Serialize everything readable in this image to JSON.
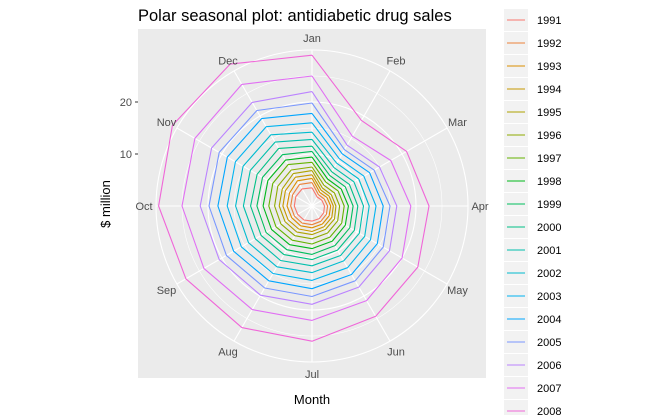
{
  "chart_data": {
    "type": "polar-line",
    "title": "Polar seasonal plot: antidiabetic drug sales",
    "xlabel": "Month",
    "ylabel": "$ million",
    "months": [
      "Jan",
      "Feb",
      "Mar",
      "Apr",
      "May",
      "Jun",
      "Jul",
      "Aug",
      "Sep",
      "Oct",
      "Nov",
      "Dec"
    ],
    "r_ticks": [
      10,
      20
    ],
    "r_max": 30,
    "grid": true,
    "legend_position": "right",
    "series": [
      {
        "name": "1991",
        "color": "#F8766D",
        "values": [
          3.5,
          2.0,
          2.2,
          2.4,
          2.6,
          2.8,
          2.9,
          3.1,
          3.2,
          3.4,
          3.6,
          3.8
        ]
      },
      {
        "name": "1992",
        "color": "#EC8239",
        "values": [
          4.5,
          2.5,
          2.7,
          3.0,
          3.2,
          3.4,
          3.6,
          3.8,
          3.9,
          4.1,
          4.3,
          4.8
        ]
      },
      {
        "name": "1993",
        "color": "#DB8E00",
        "values": [
          5.3,
          3.0,
          3.3,
          3.6,
          3.8,
          4.0,
          4.2,
          4.4,
          4.5,
          4.8,
          5.0,
          5.6
        ]
      },
      {
        "name": "1994",
        "color": "#C79800",
        "values": [
          6.0,
          3.5,
          3.8,
          4.1,
          4.4,
          4.6,
          4.9,
          5.1,
          5.3,
          5.6,
          5.9,
          6.4
        ]
      },
      {
        "name": "1995",
        "color": "#AEA200",
        "values": [
          6.8,
          4.0,
          4.3,
          4.6,
          5.0,
          5.2,
          5.5,
          5.8,
          6.0,
          6.3,
          6.6,
          7.2
        ]
      },
      {
        "name": "1996",
        "color": "#8EAB00",
        "values": [
          7.5,
          4.6,
          5.0,
          5.3,
          5.7,
          6.0,
          6.3,
          6.6,
          6.9,
          7.2,
          7.6,
          8.0
        ]
      },
      {
        "name": "1997",
        "color": "#64B200",
        "values": [
          8.4,
          5.3,
          5.8,
          6.2,
          6.6,
          6.9,
          7.3,
          7.6,
          8.0,
          8.3,
          8.7,
          9.2
        ]
      },
      {
        "name": "1998",
        "color": "#00B81B",
        "values": [
          9.4,
          6.0,
          6.5,
          7.0,
          7.4,
          7.8,
          8.2,
          8.6,
          9.0,
          9.4,
          9.8,
          10.2
        ]
      },
      {
        "name": "1999",
        "color": "#00BD5C",
        "values": [
          10.5,
          6.8,
          7.4,
          7.9,
          8.4,
          8.8,
          9.3,
          9.7,
          10.2,
          10.6,
          11.0,
          11.4
        ]
      },
      {
        "name": "2000",
        "color": "#00C086",
        "values": [
          11.5,
          7.6,
          8.3,
          8.8,
          9.4,
          9.8,
          10.3,
          10.8,
          11.3,
          11.8,
          12.2,
          12.8
        ]
      },
      {
        "name": "2001",
        "color": "#00BFAC",
        "values": [
          12.8,
          8.5,
          9.3,
          9.9,
          10.5,
          11.0,
          11.5,
          12.1,
          12.6,
          13.2,
          13.7,
          14.2
        ]
      },
      {
        "name": "2002",
        "color": "#00BBCF",
        "values": [
          14.2,
          9.5,
          10.4,
          11.0,
          11.7,
          12.2,
          12.8,
          13.5,
          14.1,
          14.7,
          15.3,
          15.8
        ]
      },
      {
        "name": "2003",
        "color": "#00B3F0",
        "values": [
          16.0,
          10.5,
          11.5,
          12.3,
          13.0,
          13.7,
          14.3,
          15.0,
          15.7,
          16.3,
          17.0,
          17.6
        ]
      },
      {
        "name": "2004",
        "color": "#00A5FF",
        "values": [
          17.8,
          11.6,
          12.8,
          13.7,
          14.5,
          15.2,
          15.9,
          16.6,
          17.4,
          18.1,
          18.8,
          19.4
        ]
      },
      {
        "name": "2005",
        "color": "#7997FF",
        "values": [
          19.8,
          12.5,
          13.8,
          15.0,
          15.8,
          16.6,
          17.4,
          18.2,
          19.0,
          19.8,
          20.6,
          21.2
        ]
      },
      {
        "name": "2006",
        "color": "#BB83FF",
        "values": [
          22.0,
          13.5,
          15.0,
          16.3,
          17.2,
          18.0,
          18.9,
          19.8,
          20.6,
          21.5,
          22.3,
          23.0
        ]
      },
      {
        "name": "2007",
        "color": "#E16FF3",
        "values": [
          25.0,
          15.5,
          17.5,
          19.0,
          20.0,
          21.0,
          22.0,
          23.0,
          24.0,
          25.0,
          26.0,
          27.0
        ]
      },
      {
        "name": "2008",
        "color": "#F066D8",
        "values": [
          29.0,
          19.0,
          21.0,
          22.5,
          23.5,
          24.5,
          26.0,
          27.0,
          28.0,
          29.5,
          31.0,
          31.5
        ]
      }
    ]
  }
}
